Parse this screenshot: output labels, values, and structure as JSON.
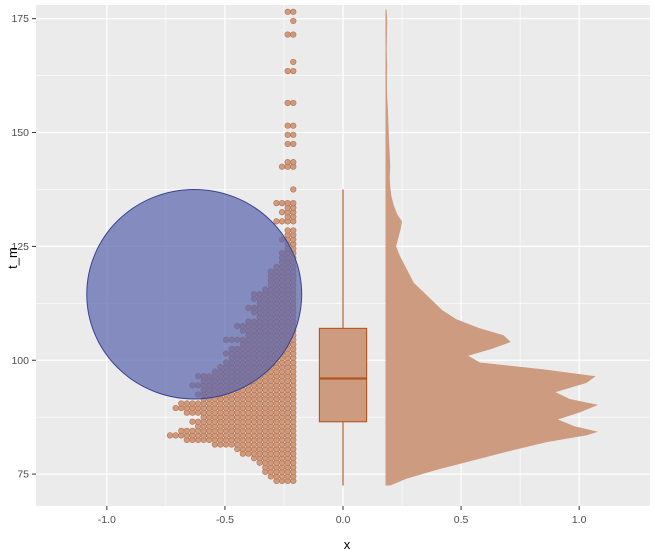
{
  "chart_data": {
    "type": "raincloud",
    "title": "",
    "xlabel": "x",
    "ylabel": "t_m",
    "xlim": [
      -1.3,
      1.3
    ],
    "ylim": [
      68,
      178
    ],
    "x_ticks": [
      -1.0,
      -0.5,
      0.0,
      0.5,
      1.0
    ],
    "x_tick_labels": [
      "-1.0",
      "-0.5",
      "0.0",
      "0.5",
      "1.0"
    ],
    "y_ticks": [
      75,
      100,
      125,
      150,
      175
    ],
    "y_tick_labels": [
      "75",
      "100",
      "125",
      "150",
      "175"
    ],
    "grid": true,
    "colors": {
      "panel": "#ebebeb",
      "grid": "#ffffff",
      "fill": "#cd9b7f",
      "point_edge": "#b86e48",
      "box_edge": "#b5541e",
      "circle_fill": "#5b67ad",
      "circle_edge": "#3a4391"
    },
    "dotplot": {
      "right_x": -0.2,
      "bin_width": 1.0,
      "rows": [
        {
          "y": 73.5,
          "count": 4
        },
        {
          "y": 74.5,
          "count": 5
        },
        {
          "y": 75.5,
          "count": 6
        },
        {
          "y": 76.5,
          "count": 6
        },
        {
          "y": 77.5,
          "count": 7
        },
        {
          "y": 78.5,
          "count": 8
        },
        {
          "y": 79.5,
          "count": 10
        },
        {
          "y": 80.5,
          "count": 11
        },
        {
          "y": 81.5,
          "count": 15
        },
        {
          "y": 82.5,
          "count": 20
        },
        {
          "y": 83.5,
          "count": 23
        },
        {
          "y": 84.5,
          "count": 21
        },
        {
          "y": 85.5,
          "count": 18
        },
        {
          "y": 86.5,
          "count": 19
        },
        {
          "y": 87.5,
          "count": 17
        },
        {
          "y": 88.5,
          "count": 20
        },
        {
          "y": 89.5,
          "count": 22
        },
        {
          "y": 90.5,
          "count": 21
        },
        {
          "y": 91.5,
          "count": 17
        },
        {
          "y": 92.5,
          "count": 18
        },
        {
          "y": 93.5,
          "count": 17
        },
        {
          "y": 94.5,
          "count": 19
        },
        {
          "y": 95.5,
          "count": 17
        },
        {
          "y": 96.5,
          "count": 18
        },
        {
          "y": 97.5,
          "count": 15
        },
        {
          "y": 98.5,
          "count": 14
        },
        {
          "y": 99.5,
          "count": 13
        },
        {
          "y": 100.5,
          "count": 12
        },
        {
          "y": 101.5,
          "count": 13
        },
        {
          "y": 102.5,
          "count": 12
        },
        {
          "y": 103.5,
          "count": 10
        },
        {
          "y": 104.5,
          "count": 13
        },
        {
          "y": 105.5,
          "count": 9
        },
        {
          "y": 106.5,
          "count": 10
        },
        {
          "y": 107.5,
          "count": 11
        },
        {
          "y": 108.5,
          "count": 9
        },
        {
          "y": 109.5,
          "count": 7
        },
        {
          "y": 110.5,
          "count": 8
        },
        {
          "y": 111.5,
          "count": 9
        },
        {
          "y": 112.5,
          "count": 7
        },
        {
          "y": 113.5,
          "count": 8
        },
        {
          "y": 114.5,
          "count": 8
        },
        {
          "y": 115.5,
          "count": 6
        },
        {
          "y": 116.5,
          "count": 5
        },
        {
          "y": 117.5,
          "count": 5
        },
        {
          "y": 118.5,
          "count": 5
        },
        {
          "y": 119.5,
          "count": 5
        },
        {
          "y": 120.5,
          "count": 4
        },
        {
          "y": 121.5,
          "count": 3
        },
        {
          "y": 122.5,
          "count": 3
        },
        {
          "y": 123.5,
          "count": 3
        },
        {
          "y": 124.5,
          "count": 2
        },
        {
          "y": 125.5,
          "count": 2
        },
        {
          "y": 126.5,
          "count": 3
        },
        {
          "y": 127.5,
          "count": 2
        },
        {
          "y": 128.5,
          "count": 2
        },
        {
          "y": 130.5,
          "count": 4
        },
        {
          "y": 131.5,
          "count": 2
        },
        {
          "y": 132.5,
          "count": 3
        },
        {
          "y": 133.5,
          "count": 2
        },
        {
          "y": 134.5,
          "count": 4
        },
        {
          "y": 137.5,
          "count": 1
        },
        {
          "y": 142.5,
          "count": 3
        },
        {
          "y": 143.5,
          "count": 2
        },
        {
          "y": 147.5,
          "count": 2
        },
        {
          "y": 149.5,
          "count": 2
        },
        {
          "y": 151.5,
          "count": 2
        },
        {
          "y": 156.5,
          "count": 2
        },
        {
          "y": 163.5,
          "count": 2
        },
        {
          "y": 165.5,
          "count": 1
        },
        {
          "y": 171.5,
          "count": 2
        },
        {
          "y": 174.5,
          "count": 1
        },
        {
          "y": 176.5,
          "count": 2
        }
      ]
    },
    "boxplot": {
      "x": 0.0,
      "half_width": 0.1,
      "whisker_low": 72.5,
      "q1": 86.5,
      "median": 96,
      "q3": 107,
      "whisker_high": 137.5
    },
    "density": {
      "baseline_x": 0.18,
      "profile": [
        [
          72.5,
          0.02
        ],
        [
          74,
          0.09
        ],
        [
          76,
          0.22
        ],
        [
          78,
          0.37
        ],
        [
          80,
          0.52
        ],
        [
          82,
          0.68
        ],
        [
          83.5,
          0.85
        ],
        [
          84.3,
          0.9
        ],
        [
          85.5,
          0.8
        ],
        [
          87,
          0.73
        ],
        [
          88.5,
          0.82
        ],
        [
          90.2,
          0.9
        ],
        [
          91.5,
          0.78
        ],
        [
          93,
          0.72
        ],
        [
          95,
          0.85
        ],
        [
          96.5,
          0.89
        ],
        [
          98,
          0.67
        ],
        [
          99.5,
          0.4
        ],
        [
          101,
          0.35
        ],
        [
          102.5,
          0.45
        ],
        [
          104,
          0.53
        ],
        [
          105.5,
          0.5
        ],
        [
          107,
          0.4
        ],
        [
          109,
          0.3
        ],
        [
          111,
          0.24
        ],
        [
          113,
          0.2
        ],
        [
          115,
          0.16
        ],
        [
          117,
          0.12
        ],
        [
          119,
          0.1
        ],
        [
          121,
          0.08
        ],
        [
          123,
          0.06
        ],
        [
          125,
          0.045
        ],
        [
          127,
          0.055
        ],
        [
          129,
          0.065
        ],
        [
          130.5,
          0.07
        ],
        [
          132,
          0.05
        ],
        [
          134,
          0.035
        ],
        [
          136,
          0.025
        ],
        [
          138,
          0.02
        ],
        [
          140,
          0.018
        ],
        [
          142.5,
          0.02
        ],
        [
          145,
          0.018
        ],
        [
          148,
          0.015
        ],
        [
          151,
          0.013
        ],
        [
          155,
          0.01
        ],
        [
          158,
          0.007
        ],
        [
          162,
          0.006
        ],
        [
          165,
          0.007
        ],
        [
          168,
          0.005
        ],
        [
          171,
          0.006
        ],
        [
          174,
          0.007
        ],
        [
          176,
          0.006
        ],
        [
          177,
          0.004
        ]
      ]
    },
    "circle": {
      "center_x": -0.63,
      "center_y": 114.5,
      "radius_y": 23,
      "radius_x": 0.455
    }
  }
}
